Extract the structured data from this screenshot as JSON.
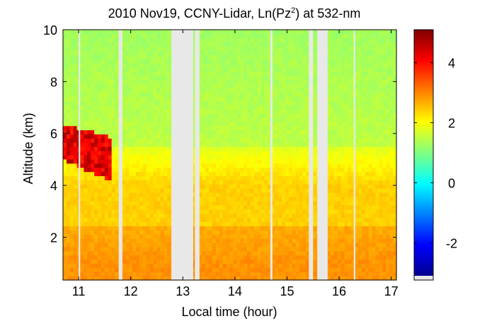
{
  "chart_data": {
    "type": "heatmap",
    "title_main": "2010 Nov19, CCNY-Lidar, Ln(Pz",
    "title_sup": "2",
    "title_tail": ") at 532-nm",
    "xlabel": "Local time (hour)",
    "ylabel": "Altitude (km)",
    "xlim": [
      10.7,
      17.1
    ],
    "ylim": [
      0.35,
      10.0
    ],
    "xticks": [
      11,
      12,
      13,
      14,
      15,
      16,
      17
    ],
    "yticks": [
      2,
      4,
      6,
      8,
      10
    ],
    "colorbar": {
      "range": [
        -3.1,
        5.1
      ],
      "ticks": [
        -2,
        0,
        2,
        4
      ],
      "colormap": "jet"
    },
    "data_gaps_hours": [
      [
        11.0,
        11.03
      ],
      [
        11.77,
        11.84
      ],
      [
        12.78,
        13.2
      ],
      [
        13.23,
        13.32
      ],
      [
        14.68,
        14.72
      ],
      [
        15.42,
        15.5
      ],
      [
        15.58,
        15.78
      ],
      [
        16.28,
        16.31
      ]
    ],
    "features": {
      "cloud_layer": {
        "time_hours": [
          10.7,
          11.6
        ],
        "altitude_km": [
          4.2,
          6.4
        ],
        "value": 4.8
      },
      "low_layer_value": 2.9,
      "mid_layer_value": 2.4,
      "upper_layer_value": 1.5
    }
  }
}
